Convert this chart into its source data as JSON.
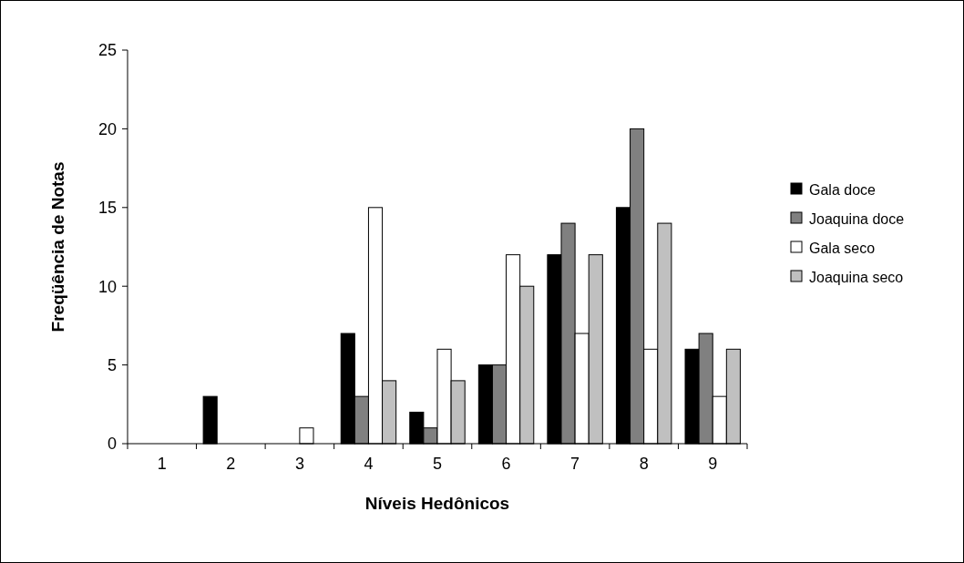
{
  "chart_data": {
    "type": "bar",
    "xlabel": "Níveis Hedônicos",
    "ylabel": "Freqüência de Notas",
    "categories": [
      "1",
      "2",
      "3",
      "4",
      "5",
      "6",
      "7",
      "8",
      "9"
    ],
    "series": [
      {
        "name": "Gala doce",
        "color": "#000000",
        "values": [
          0,
          3,
          0,
          7,
          2,
          5,
          12,
          15,
          6
        ]
      },
      {
        "name": "Joaquina doce",
        "color": "#808080",
        "values": [
          0,
          0,
          0,
          3,
          1,
          5,
          14,
          20,
          7
        ]
      },
      {
        "name": "Gala seco",
        "color": "#ffffff",
        "values": [
          0,
          0,
          1,
          15,
          6,
          12,
          7,
          6,
          3
        ]
      },
      {
        "name": "Joaquina seco",
        "color": "#c0c0c0",
        "values": [
          0,
          0,
          0,
          4,
          4,
          10,
          12,
          14,
          6
        ]
      }
    ],
    "ylim": [
      0,
      25
    ],
    "yticks": [
      0,
      5,
      10,
      15,
      20,
      25
    ],
    "grid": false,
    "legend": "right"
  }
}
